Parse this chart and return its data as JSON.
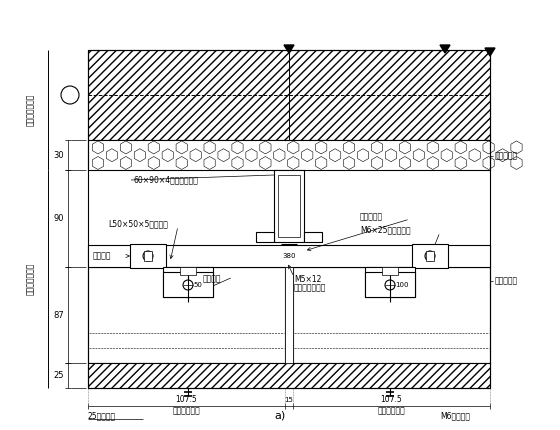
{
  "title": "a)",
  "bg_color": "#ffffff",
  "labels": {
    "top_left_v1": "按实际工程采用",
    "top_left_v2": "按实际工程采用",
    "label_beam": "60×90×4镀锌钢通主梁",
    "label_angle": "L50×50×5镀锌角钢",
    "label_bolt1": "锁紧螺钉",
    "label_pad": "防腐垫片",
    "label_screw1": "M5×12",
    "label_screw2": "不锈钢微调螺钉",
    "label_rod1": "不锈钢螺杆",
    "label_rod2": "M6×25不锈钢螺杆",
    "label_bracket": "铝合金挂件",
    "label_insulation": "保温防火层",
    "label_stone": "25厚花岗石",
    "label_anchor": "M6后切螺栓",
    "label_curtain1": "幕墙分格尺寸",
    "label_curtain2": "幕墙分格尺寸",
    "dim_30": "30",
    "dim_90": "90",
    "dim_87": "87",
    "dim_25": "25",
    "dim_380": "380",
    "dim_107_5_left": "107.5",
    "dim_107_5_right": "107.5",
    "dim_15": "15",
    "dim_50": "50",
    "dim_100": "100"
  }
}
